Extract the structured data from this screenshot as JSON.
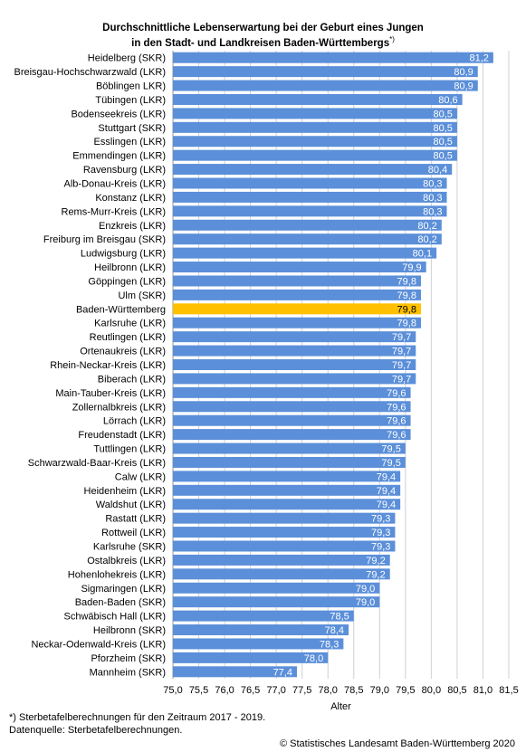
{
  "chart_data": {
    "type": "bar",
    "orientation": "horizontal",
    "title_line1": "Durchschnittliche Lebenserwartung bei der Geburt eines Jungen",
    "title_line2": "in den Stadt- und Landkreisen Baden-Württembergs",
    "title_footnote_mark": "*)",
    "xlabel": "Alter",
    "xlim": [
      75.0,
      81.5
    ],
    "xticks": [
      "75,0",
      "75,5",
      "76,0",
      "76,5",
      "77,0",
      "77,5",
      "78,0",
      "78,5",
      "79,0",
      "79,5",
      "80,0",
      "80,5",
      "81,0",
      "81,5"
    ],
    "grid": true,
    "bar_color": "#5b8fd9",
    "highlight_color": "#ffc000",
    "highlight_category": "Baden-Württemberg",
    "categories": [
      "Heidelberg (SKR)",
      "Breisgau-Hochschwarzwald (LKR)",
      "Böblingen LKR)",
      "Tübingen (LKR)",
      "Bodenseekreis (LKR)",
      "Stuttgart (SKR)",
      "Esslingen (LKR)",
      "Emmendingen (LKR)",
      "Ravensburg (LKR)",
      "Alb-Donau-Kreis (LKR)",
      "Konstanz (LKR)",
      "Rems-Murr-Kreis  (LKR)",
      "Enzkreis (LKR)",
      "Freiburg im Breisgau (SKR)",
      "Ludwigsburg (LKR)",
      "Heilbronn (LKR)",
      "Göppingen (LKR)",
      "Ulm (SKR)",
      "Baden-Württemberg",
      "Karlsruhe (LKR)",
      "Reutlingen (LKR)",
      "Ortenaukreis (LKR)",
      "Rhein-Neckar-Kreis (LKR)",
      "Biberach (LKR)",
      "Main-Tauber-Kreis (LKR)",
      "Zollernalbkreis (LKR)",
      "Lörrach (LKR)",
      "Freudenstadt (LKR)",
      "Tuttlingen (LKR)",
      "Schwarzwald-Baar-Kreis (LKR)",
      "Calw (LKR)",
      "Heidenheim (LKR)",
      "Waldshut (LKR)",
      "Rastatt (LKR)",
      "Rottweil (LKR)",
      "Karlsruhe (SKR)",
      "Ostalbkreis (LKR)",
      "Hohenlohekreis (LKR)",
      "Sigmaringen (LKR)",
      "Baden-Baden (SKR)",
      "Schwäbisch Hall (LKR)",
      "Heilbronn (SKR)",
      "Neckar-Odenwald-Kreis (LKR)",
      "Pforzheim (SKR)",
      "Mannheim (SKR)"
    ],
    "values": [
      81.2,
      80.9,
      80.9,
      80.6,
      80.5,
      80.5,
      80.5,
      80.5,
      80.4,
      80.3,
      80.3,
      80.3,
      80.2,
      80.2,
      80.1,
      79.9,
      79.8,
      79.8,
      79.8,
      79.8,
      79.7,
      79.7,
      79.7,
      79.7,
      79.6,
      79.6,
      79.6,
      79.6,
      79.5,
      79.5,
      79.4,
      79.4,
      79.4,
      79.3,
      79.3,
      79.3,
      79.2,
      79.2,
      79.0,
      79.0,
      78.5,
      78.4,
      78.3,
      78.0,
      77.4
    ],
    "value_labels": [
      "81,2",
      "80,9",
      "80,9",
      "80,6",
      "80,5",
      "80,5",
      "80,5",
      "80,5",
      "80,4",
      "80,3",
      "80,3",
      "80,3",
      "80,2",
      "80,2",
      "80,1",
      "79,9",
      "79,8",
      "79,8",
      "79,8",
      "79,8",
      "79,7",
      "79,7",
      "79,7",
      "79,7",
      "79,6",
      "79,6",
      "79,6",
      "79,6",
      "79,5",
      "79,5",
      "79,4",
      "79,4",
      "79,4",
      "79,3",
      "79,3",
      "79,3",
      "79,2",
      "79,2",
      "79,0",
      "79,0",
      "78,5",
      "78,4",
      "78,3",
      "78,0",
      "77,4"
    ]
  },
  "footnote": "*) Sterbetafelberechnungen für den Zeitraum 2017 - 2019.",
  "source": "Datenquelle: Sterbetafelberechnungen.",
  "copyright": "© Statistisches Landesamt Baden-Württemberg 2020"
}
